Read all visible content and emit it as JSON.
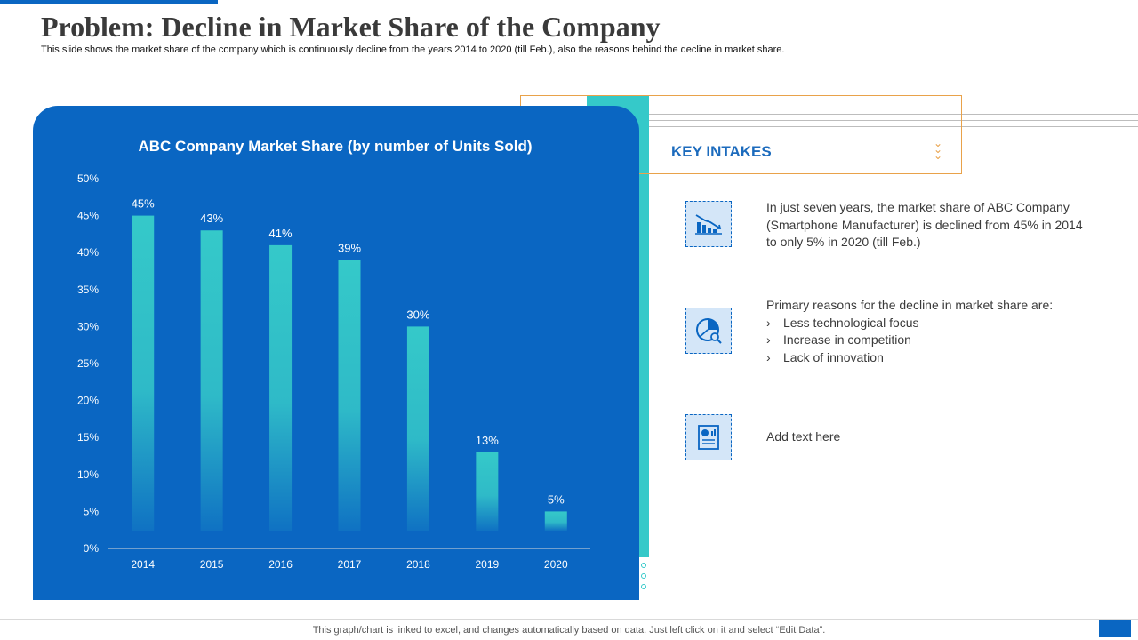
{
  "slide": {
    "title": "Problem: Decline in Market Share of the Company",
    "subtitle": "This slide shows the market share of the company which is continuously decline from the years 2014 to 2020 (till Feb.), also the reasons behind the decline in market share.",
    "footer": "This graph/chart is linked to excel, and changes automatically based on data. Just left click on it and select “Edit Data”."
  },
  "key_intakes": {
    "title": "KEY INTAKES",
    "items": [
      {
        "icon": "declining-chart-icon",
        "text": "In just seven years, the market share of ABC Company (Smartphone Manufacturer) is declined from 45% in 2014 to only 5% in 2020 (till Feb.)"
      },
      {
        "icon": "pie-analysis-icon",
        "text": "Primary reasons for the decline in market share are:",
        "bullets": [
          "Less technological focus",
          "Increase in competition",
          "Lack of innovation"
        ]
      },
      {
        "icon": "report-document-icon",
        "text": "Add text here"
      }
    ]
  },
  "colors": {
    "panel": "#0a66c2",
    "bar": "#35c9c9",
    "accent": "#e9a24a"
  },
  "chart_data": {
    "type": "bar",
    "title": "ABC Company Market Share (by number of Units Sold)",
    "categories": [
      "2014",
      "2015",
      "2016",
      "2017",
      "2018",
      "2019",
      "2020"
    ],
    "values": [
      45,
      43,
      41,
      39,
      30,
      13,
      5
    ],
    "data_labels": [
      "45%",
      "43%",
      "41%",
      "39%",
      "30%",
      "13%",
      "5%"
    ],
    "yticks": [
      "0%",
      "5%",
      "10%",
      "15%",
      "20%",
      "25%",
      "30%",
      "35%",
      "40%",
      "45%",
      "50%"
    ],
    "ylim": [
      0,
      50
    ],
    "xlabel": "",
    "ylabel": "",
    "grid": false
  }
}
